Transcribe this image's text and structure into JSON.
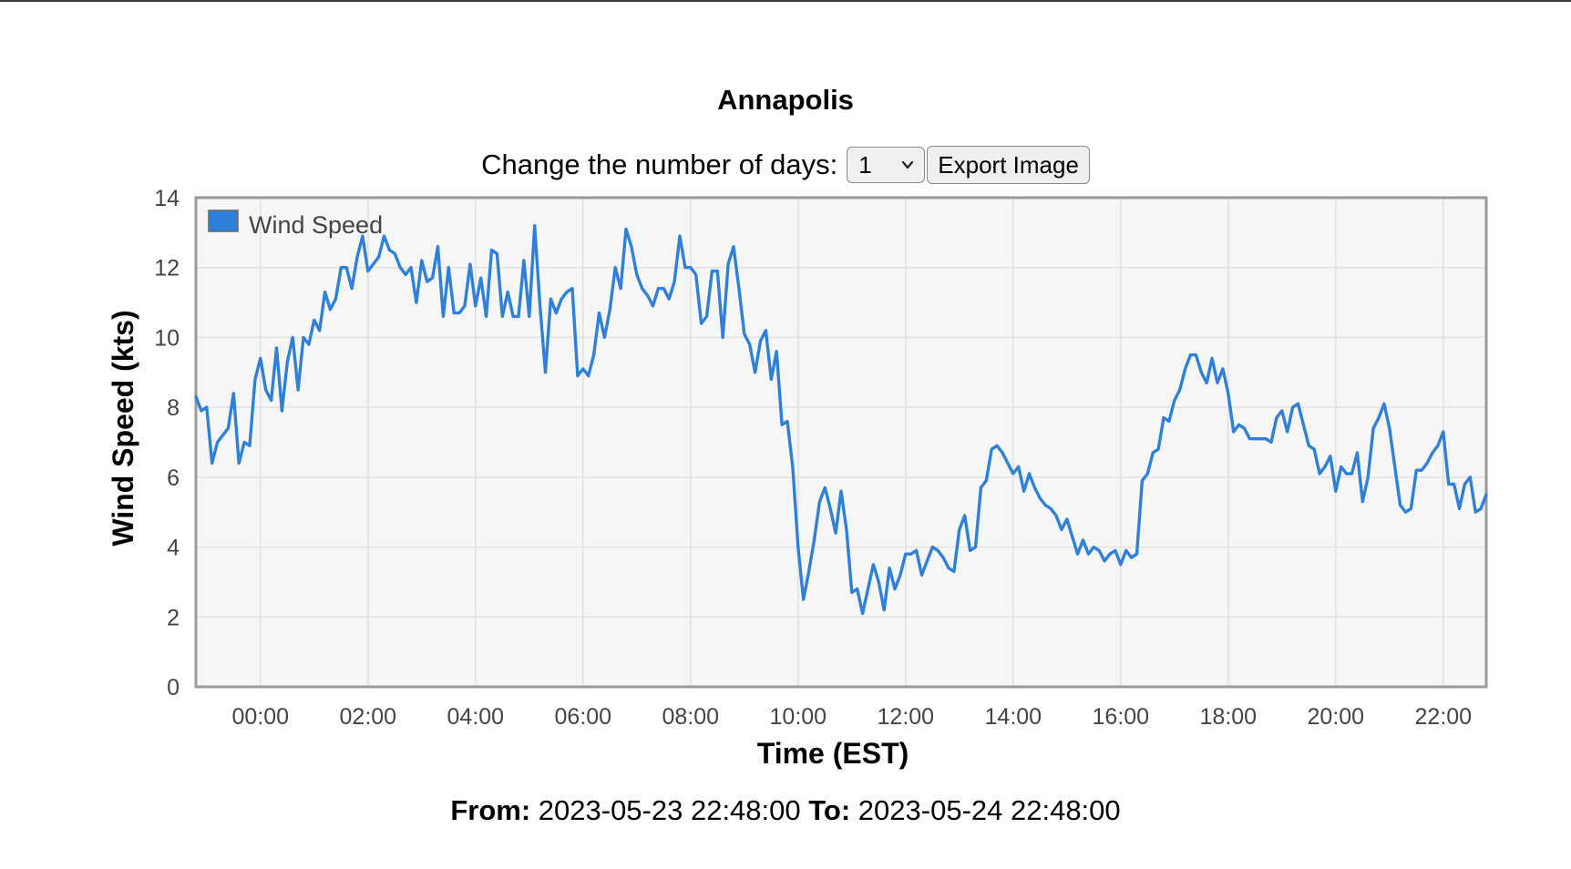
{
  "page": {
    "title": "Annapolis",
    "days_label": "Change the number of days:",
    "days_selected": "1",
    "export_label": "Export Image",
    "from_label": "From:",
    "from_value": "2023-05-23 22:48:00",
    "to_label": "To:",
    "to_value": "2023-05-24 22:48:00"
  },
  "colors": {
    "series": "#2f80d8",
    "plot_bg": "#f6f6f6",
    "plot_border": "#9a9a9a",
    "grid": "#e2e2e2"
  },
  "chart_data": {
    "type": "line",
    "title": "Annapolis",
    "xlabel": "Time (EST)",
    "ylabel": "Wind Speed (kts)",
    "ylim": [
      0,
      14
    ],
    "yticks": [
      "0",
      "2",
      "4",
      "6",
      "8",
      "10",
      "12",
      "14"
    ],
    "xticks": [
      "00:00",
      "02:00",
      "04:00",
      "06:00",
      "08:00",
      "10:00",
      "12:00",
      "14:00",
      "16:00",
      "18:00",
      "20:00",
      "22:00"
    ],
    "xlim": [
      "2023-05-23 22:48",
      "2023-05-24 22:48"
    ],
    "grid": true,
    "legend": "top-left",
    "series": [
      {
        "name": "Wind Speed",
        "x": [
          "2023-05-23 22:48",
          "2023-05-23 22:54",
          "2023-05-23 23:00",
          "2023-05-23 23:06",
          "2023-05-23 23:12",
          "2023-05-23 23:18",
          "2023-05-23 23:24",
          "2023-05-23 23:30",
          "2023-05-23 23:36",
          "2023-05-23 23:42",
          "2023-05-23 23:48",
          "2023-05-23 23:54",
          "2023-05-24 00:00",
          "2023-05-24 00:06",
          "2023-05-24 00:12",
          "2023-05-24 00:18",
          "2023-05-24 00:24",
          "2023-05-24 00:30",
          "2023-05-24 00:36",
          "2023-05-24 00:42",
          "2023-05-24 00:48",
          "2023-05-24 00:54",
          "2023-05-24 01:00",
          "2023-05-24 01:06",
          "2023-05-24 01:12",
          "2023-05-24 01:18",
          "2023-05-24 01:24",
          "2023-05-24 01:30",
          "2023-05-24 01:36",
          "2023-05-24 01:42",
          "2023-05-24 01:48",
          "2023-05-24 01:54",
          "2023-05-24 02:00",
          "2023-05-24 02:06",
          "2023-05-24 02:12",
          "2023-05-24 02:18",
          "2023-05-24 02:24",
          "2023-05-24 02:30",
          "2023-05-24 02:36",
          "2023-05-24 02:42",
          "2023-05-24 02:48",
          "2023-05-24 02:54",
          "2023-05-24 03:00",
          "2023-05-24 03:06",
          "2023-05-24 03:12",
          "2023-05-24 03:18",
          "2023-05-24 03:24",
          "2023-05-24 03:30",
          "2023-05-24 03:36",
          "2023-05-24 03:42",
          "2023-05-24 03:48",
          "2023-05-24 03:54",
          "2023-05-24 04:00",
          "2023-05-24 04:06",
          "2023-05-24 04:12",
          "2023-05-24 04:18",
          "2023-05-24 04:24",
          "2023-05-24 04:30",
          "2023-05-24 04:36",
          "2023-05-24 04:42",
          "2023-05-24 04:48",
          "2023-05-24 04:54",
          "2023-05-24 05:00",
          "2023-05-24 05:06",
          "2023-05-24 05:12",
          "2023-05-24 05:18",
          "2023-05-24 05:24",
          "2023-05-24 05:30",
          "2023-05-24 05:36",
          "2023-05-24 05:42",
          "2023-05-24 05:48",
          "2023-05-24 05:54",
          "2023-05-24 06:00",
          "2023-05-24 06:06",
          "2023-05-24 06:12",
          "2023-05-24 06:18",
          "2023-05-24 06:24",
          "2023-05-24 06:30",
          "2023-05-24 06:36",
          "2023-05-24 06:42",
          "2023-05-24 06:48",
          "2023-05-24 06:54",
          "2023-05-24 07:00",
          "2023-05-24 07:06",
          "2023-05-24 07:12",
          "2023-05-24 07:18",
          "2023-05-24 07:24",
          "2023-05-24 07:30",
          "2023-05-24 07:36",
          "2023-05-24 07:42",
          "2023-05-24 07:48",
          "2023-05-24 07:54",
          "2023-05-24 08:00",
          "2023-05-24 08:06",
          "2023-05-24 08:12",
          "2023-05-24 08:18",
          "2023-05-24 08:24",
          "2023-05-24 08:30",
          "2023-05-24 08:36",
          "2023-05-24 08:42",
          "2023-05-24 08:48",
          "2023-05-24 08:54",
          "2023-05-24 09:00",
          "2023-05-24 09:06",
          "2023-05-24 09:12",
          "2023-05-24 09:18",
          "2023-05-24 09:24",
          "2023-05-24 09:30",
          "2023-05-24 09:36",
          "2023-05-24 09:42",
          "2023-05-24 09:48",
          "2023-05-24 09:54",
          "2023-05-24 10:00",
          "2023-05-24 10:06",
          "2023-05-24 10:12",
          "2023-05-24 10:18",
          "2023-05-24 10:24",
          "2023-05-24 10:30",
          "2023-05-24 10:36",
          "2023-05-24 10:42",
          "2023-05-24 10:48",
          "2023-05-24 10:54",
          "2023-05-24 11:00",
          "2023-05-24 11:06",
          "2023-05-24 11:12",
          "2023-05-24 11:18",
          "2023-05-24 11:24",
          "2023-05-24 11:30",
          "2023-05-24 11:36",
          "2023-05-24 11:42",
          "2023-05-24 11:48",
          "2023-05-24 11:54",
          "2023-05-24 12:00",
          "2023-05-24 12:06",
          "2023-05-24 12:12",
          "2023-05-24 12:18",
          "2023-05-24 12:24",
          "2023-05-24 12:30",
          "2023-05-24 12:36",
          "2023-05-24 12:42",
          "2023-05-24 12:48",
          "2023-05-24 12:54",
          "2023-05-24 13:00",
          "2023-05-24 13:06",
          "2023-05-24 13:12",
          "2023-05-24 13:18",
          "2023-05-24 13:24",
          "2023-05-24 13:30",
          "2023-05-24 13:36",
          "2023-05-24 13:42",
          "2023-05-24 13:48",
          "2023-05-24 13:54",
          "2023-05-24 14:00",
          "2023-05-24 14:06",
          "2023-05-24 14:12",
          "2023-05-24 14:18",
          "2023-05-24 14:24",
          "2023-05-24 14:30",
          "2023-05-24 14:36",
          "2023-05-24 14:42",
          "2023-05-24 14:48",
          "2023-05-24 14:54",
          "2023-05-24 15:00",
          "2023-05-24 15:06",
          "2023-05-24 15:12",
          "2023-05-24 15:18",
          "2023-05-24 15:24",
          "2023-05-24 15:30",
          "2023-05-24 15:36",
          "2023-05-24 15:42",
          "2023-05-24 15:48",
          "2023-05-24 15:54",
          "2023-05-24 16:00",
          "2023-05-24 16:06",
          "2023-05-24 16:12",
          "2023-05-24 16:18",
          "2023-05-24 16:24",
          "2023-05-24 16:30",
          "2023-05-24 16:36",
          "2023-05-24 16:42",
          "2023-05-24 16:48",
          "2023-05-24 16:54",
          "2023-05-24 17:00",
          "2023-05-24 17:06",
          "2023-05-24 17:12",
          "2023-05-24 17:18",
          "2023-05-24 17:24",
          "2023-05-24 17:30",
          "2023-05-24 17:36",
          "2023-05-24 17:42",
          "2023-05-24 17:48",
          "2023-05-24 17:54",
          "2023-05-24 18:00",
          "2023-05-24 18:06",
          "2023-05-24 18:12",
          "2023-05-24 18:18",
          "2023-05-24 18:24",
          "2023-05-24 18:30",
          "2023-05-24 18:36",
          "2023-05-24 18:42",
          "2023-05-24 18:48",
          "2023-05-24 18:54",
          "2023-05-24 19:00",
          "2023-05-24 19:06",
          "2023-05-24 19:12",
          "2023-05-24 19:18",
          "2023-05-24 19:24",
          "2023-05-24 19:30",
          "2023-05-24 19:36",
          "2023-05-24 19:42",
          "2023-05-24 19:48",
          "2023-05-24 19:54",
          "2023-05-24 20:00",
          "2023-05-24 20:06",
          "2023-05-24 20:12",
          "2023-05-24 20:18",
          "2023-05-24 20:24",
          "2023-05-24 20:30",
          "2023-05-24 20:36",
          "2023-05-24 20:42",
          "2023-05-24 20:48",
          "2023-05-24 20:54",
          "2023-05-24 21:00",
          "2023-05-24 21:06",
          "2023-05-24 21:12",
          "2023-05-24 21:18",
          "2023-05-24 21:24",
          "2023-05-24 21:30",
          "2023-05-24 21:36",
          "2023-05-24 21:42",
          "2023-05-24 21:48",
          "2023-05-24 21:54",
          "2023-05-24 22:00",
          "2023-05-24 22:06",
          "2023-05-24 22:12",
          "2023-05-24 22:18",
          "2023-05-24 22:24",
          "2023-05-24 22:30",
          "2023-05-24 22:36",
          "2023-05-24 22:42",
          "2023-05-24 22:48"
        ],
        "y": [
          8.3,
          7.9,
          8.0,
          6.4,
          7.0,
          7.2,
          7.4,
          8.4,
          6.4,
          7.0,
          6.9,
          8.8,
          9.4,
          8.5,
          8.2,
          9.7,
          7.9,
          9.3,
          10.0,
          8.5,
          10.0,
          9.8,
          10.5,
          10.2,
          11.3,
          10.8,
          11.1,
          12.0,
          12.0,
          11.4,
          12.3,
          12.9,
          11.9,
          12.1,
          12.3,
          12.9,
          12.5,
          12.4,
          12.0,
          11.8,
          12.0,
          11.0,
          12.2,
          11.6,
          11.7,
          12.6,
          10.6,
          12.0,
          10.7,
          10.7,
          10.9,
          12.1,
          10.9,
          11.7,
          10.6,
          12.5,
          12.4,
          10.6,
          11.3,
          10.6,
          10.6,
          12.2,
          10.6,
          13.2,
          10.9,
          9.0,
          11.1,
          10.7,
          11.1,
          11.3,
          11.4,
          8.9,
          9.1,
          8.9,
          9.5,
          10.7,
          10.0,
          10.8,
          12.0,
          11.4,
          13.1,
          12.6,
          11.8,
          11.4,
          11.2,
          10.9,
          11.4,
          11.4,
          11.1,
          11.6,
          12.9,
          12.0,
          12.0,
          11.8,
          10.4,
          10.6,
          11.9,
          11.9,
          10.0,
          12.1,
          12.6,
          11.4,
          10.1,
          9.8,
          9.0,
          9.9,
          10.2,
          8.8,
          9.6,
          7.5,
          7.6,
          6.3,
          4.0,
          2.5,
          3.3,
          4.2,
          5.3,
          5.7,
          5.1,
          4.4,
          5.6,
          4.5,
          2.7,
          2.8,
          2.1,
          2.8,
          3.5,
          3.0,
          2.2,
          3.4,
          2.8,
          3.2,
          3.8,
          3.8,
          3.9,
          3.2,
          3.6,
          4.0,
          3.9,
          3.7,
          3.4,
          3.3,
          4.5,
          4.9,
          3.9,
          4.0,
          5.7,
          5.9,
          6.8,
          6.9,
          6.7,
          6.4,
          6.1,
          6.3,
          5.6,
          6.1,
          5.7,
          5.4,
          5.2,
          5.1,
          4.9,
          4.5,
          4.8,
          4.3,
          3.8,
          4.2,
          3.8,
          4.0,
          3.9,
          3.6,
          3.8,
          3.9,
          3.5,
          3.9,
          3.7,
          3.8,
          5.9,
          6.1,
          6.7,
          6.8,
          7.7,
          7.6,
          8.2,
          8.5,
          9.1,
          9.5,
          9.5,
          9.0,
          8.7,
          9.4,
          8.7,
          9.1,
          8.4,
          7.3,
          7.5,
          7.4,
          7.1,
          7.1,
          7.1,
          7.1,
          7.0,
          7.7,
          7.9,
          7.3,
          8.0,
          8.1,
          7.5,
          6.9,
          6.8,
          6.1,
          6.3,
          6.6,
          5.6,
          6.3,
          6.1,
          6.1,
          6.7,
          5.3,
          6.0,
          7.4,
          7.7,
          8.1,
          7.4,
          6.3,
          5.2,
          5.0,
          5.1,
          6.2,
          6.2,
          6.4,
          6.7,
          6.9,
          7.3,
          5.8,
          5.8,
          5.1,
          5.8,
          6.0,
          5.0,
          5.1,
          5.5
        ]
      }
    ]
  }
}
